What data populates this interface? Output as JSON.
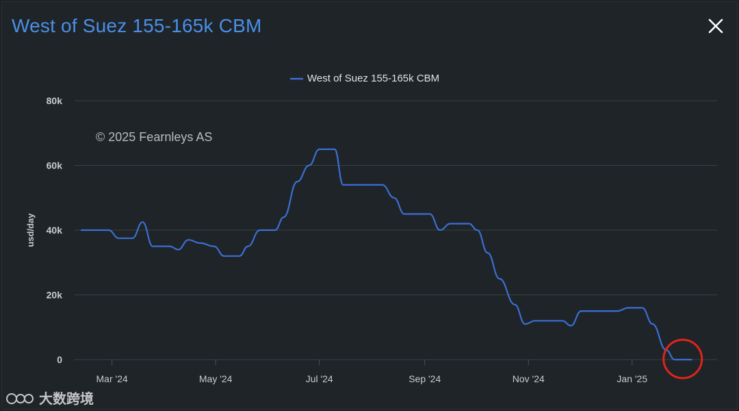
{
  "header": {
    "title": "West of Suez 155-165k CBM"
  },
  "watermark": {
    "text": "大数跨境"
  },
  "chart_data": {
    "type": "line",
    "copyright": "© 2025 Fearnleys AS",
    "ylabel": "usd/day",
    "legend": "West of Suez 155-165k CBM",
    "line_color": "#3b6fd4",
    "highlight_color": "#e0241b",
    "ylim": [
      0,
      80000
    ],
    "y_ticks": [
      {
        "value": 0,
        "label": "0"
      },
      {
        "value": 20000,
        "label": "20k"
      },
      {
        "value": 40000,
        "label": "40k"
      },
      {
        "value": 60000,
        "label": "60k"
      },
      {
        "value": 80000,
        "label": "80k"
      }
    ],
    "x_ticks": [
      {
        "value": "2024-03-01",
        "label": "Mar '24"
      },
      {
        "value": "2024-05-01",
        "label": "May '24"
      },
      {
        "value": "2024-07-01",
        "label": "Jul '24"
      },
      {
        "value": "2024-09-01",
        "label": "Sep '24"
      },
      {
        "value": "2024-11-01",
        "label": "Nov '24"
      },
      {
        "value": "2025-01-01",
        "label": "Jan '25"
      }
    ],
    "xlim": [
      "2024-02-08",
      "2025-02-20"
    ],
    "series": [
      {
        "name": "West of Suez 155-165k CBM",
        "points": [
          [
            "2024-02-12",
            40000
          ],
          [
            "2024-02-28",
            40000
          ],
          [
            "2024-03-05",
            37500
          ],
          [
            "2024-03-13",
            37500
          ],
          [
            "2024-03-19",
            42500
          ],
          [
            "2024-03-25",
            35000
          ],
          [
            "2024-04-04",
            35000
          ],
          [
            "2024-04-09",
            34000
          ],
          [
            "2024-04-15",
            37000
          ],
          [
            "2024-04-22",
            36000
          ],
          [
            "2024-04-30",
            35000
          ],
          [
            "2024-05-06",
            32000
          ],
          [
            "2024-05-15",
            32000
          ],
          [
            "2024-05-20",
            35000
          ],
          [
            "2024-05-27",
            40000
          ],
          [
            "2024-06-05",
            40000
          ],
          [
            "2024-06-10",
            44000
          ],
          [
            "2024-06-18",
            55000
          ],
          [
            "2024-06-25",
            60000
          ],
          [
            "2024-07-01",
            65000
          ],
          [
            "2024-07-10",
            65000
          ],
          [
            "2024-07-15",
            54000
          ],
          [
            "2024-08-07",
            54000
          ],
          [
            "2024-08-14",
            50000
          ],
          [
            "2024-08-20",
            45000
          ],
          [
            "2024-09-04",
            45000
          ],
          [
            "2024-09-10",
            40000
          ],
          [
            "2024-09-16",
            42000
          ],
          [
            "2024-09-27",
            42000
          ],
          [
            "2024-10-02",
            40000
          ],
          [
            "2024-10-08",
            33000
          ],
          [
            "2024-10-15",
            25000
          ],
          [
            "2024-10-24",
            17000
          ],
          [
            "2024-10-30",
            11000
          ],
          [
            "2024-11-05",
            12000
          ],
          [
            "2024-11-21",
            12000
          ],
          [
            "2024-11-26",
            10500
          ],
          [
            "2024-12-02",
            15000
          ],
          [
            "2024-12-23",
            15000
          ],
          [
            "2024-12-30",
            16000
          ],
          [
            "2025-01-07",
            16000
          ],
          [
            "2025-01-13",
            11000
          ],
          [
            "2025-01-21",
            3000
          ],
          [
            "2025-01-26",
            0
          ],
          [
            "2025-02-05",
            0
          ]
        ]
      }
    ]
  }
}
